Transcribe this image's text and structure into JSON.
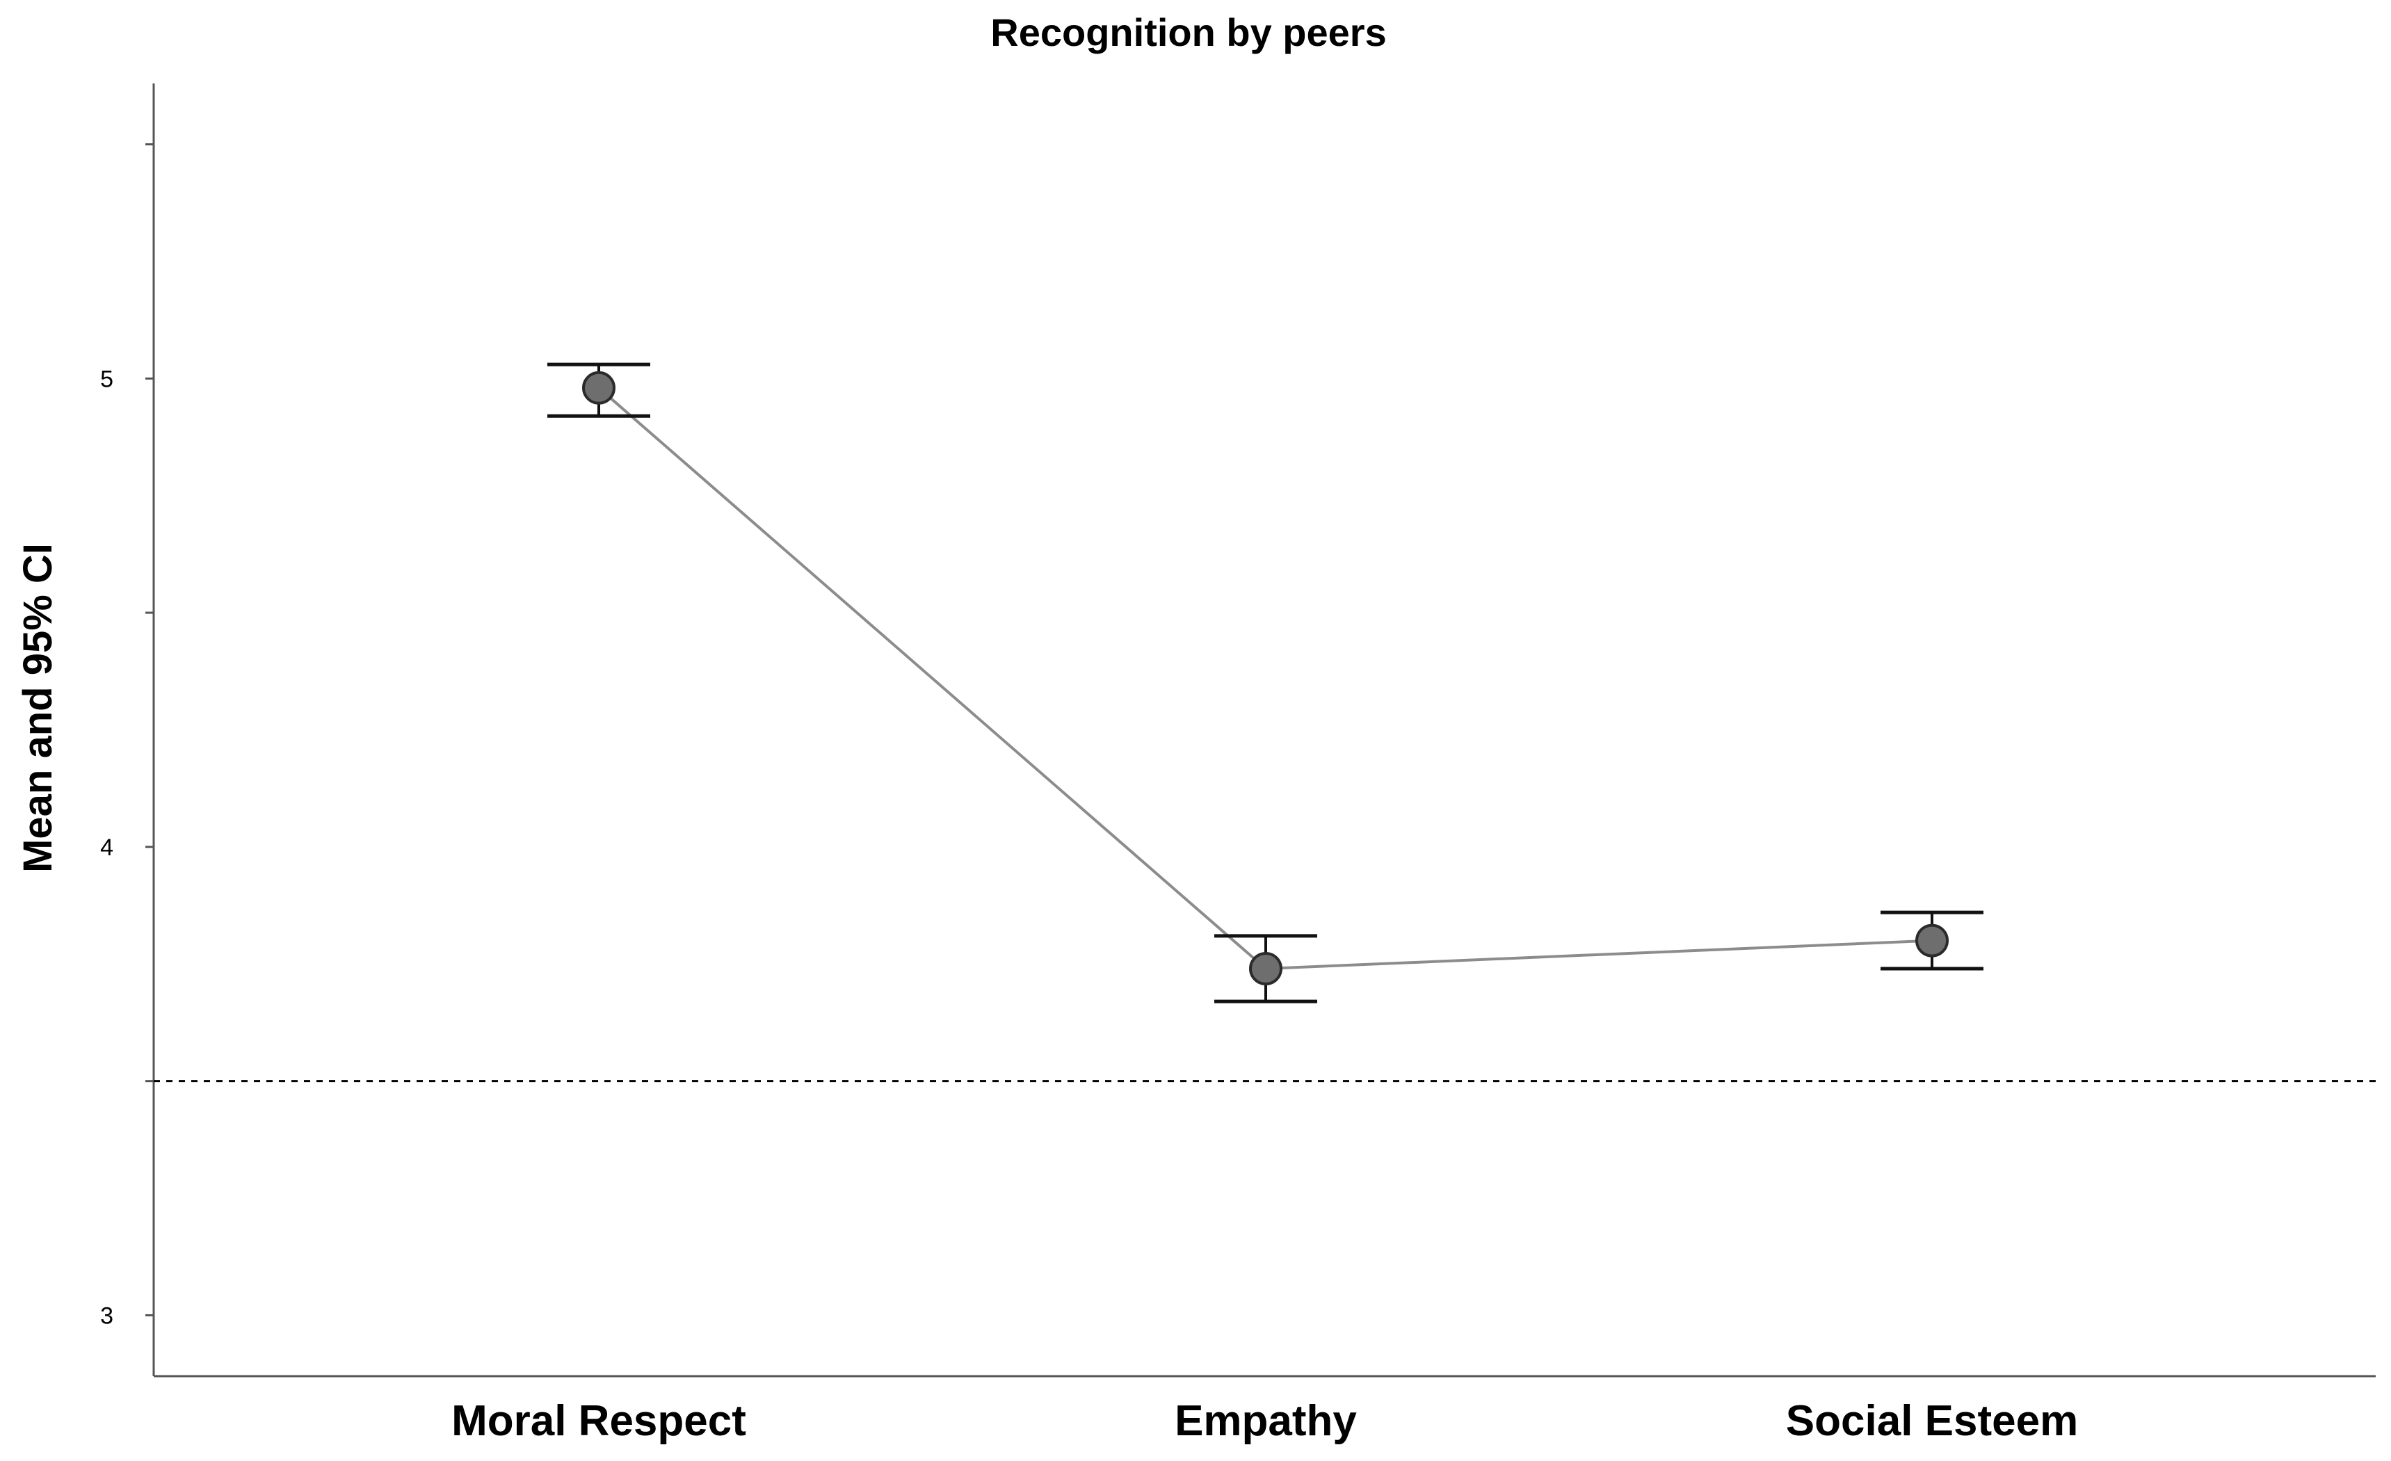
{
  "chart_data": {
    "type": "line",
    "title": "Recognition by peers",
    "xlabel": "",
    "ylabel": "Mean and 95% CI",
    "categories": [
      "Moral Respect",
      "Empathy",
      "Social Esteem"
    ],
    "series": [
      {
        "values": [
          4.98,
          3.74,
          3.8
        ],
        "ci_lower": [
          4.92,
          3.67,
          3.74
        ],
        "ci_upper": [
          5.03,
          3.81,
          3.86
        ]
      }
    ],
    "ylim": [
      2.87,
      5.63
    ],
    "yticks": [
      3,
      4,
      5
    ],
    "ytick_labels": [
      "3",
      "4",
      "5"
    ],
    "yminor_ticks": [
      3.5,
      4.5,
      5.5
    ],
    "reference_line": {
      "y": 3.5,
      "style": "dashed"
    },
    "grid": false,
    "legend": "none",
    "colors": {
      "marker_fill": "#6e6e6e",
      "marker_edge": "#2b2b2b",
      "line": "#8c8c8c",
      "errorbar": "#111111",
      "axis": "#555555"
    }
  }
}
